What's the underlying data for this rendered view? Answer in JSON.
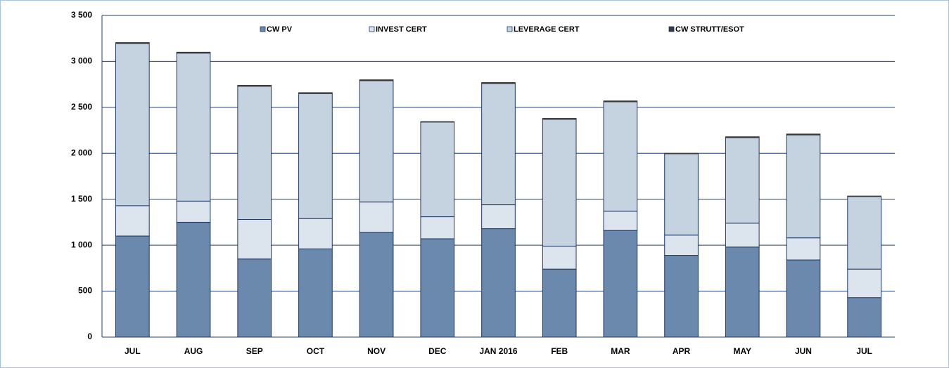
{
  "chart_data": {
    "type": "stacked_bar",
    "categories": [
      "JUL",
      "AUG",
      "SEP",
      "OCT",
      "NOV",
      "DEC",
      "JAN 2016",
      "FEB",
      "MAR",
      "APR",
      "MAY",
      "JUN",
      "JUL"
    ],
    "series": [
      {
        "name": "CW PV",
        "color": "#6b88ad",
        "values": [
          1100,
          1250,
          850,
          960,
          1140,
          1070,
          1180,
          740,
          1160,
          890,
          980,
          840,
          430
        ]
      },
      {
        "name": "INVEST CERT",
        "color": "#dce4ed",
        "values": [
          330,
          230,
          430,
          330,
          330,
          240,
          260,
          250,
          210,
          220,
          260,
          240,
          310
        ]
      },
      {
        "name": "LEVERAGE CERT",
        "color": "#c5d2e0",
        "values": [
          1765,
          1610,
          1450,
          1360,
          1320,
          1030,
          1320,
          1380,
          1190,
          885,
          930,
          1120,
          790
        ]
      },
      {
        "name": "CW STRUTT/ESOT",
        "color": "#3a3a3a",
        "values": [
          10,
          10,
          10,
          10,
          10,
          5,
          10,
          10,
          10,
          5,
          10,
          10,
          5
        ]
      }
    ],
    "ylim": [
      0,
      3500
    ],
    "yticks": [
      0,
      500,
      {
        "value": 1000,
        "label": "1 000"
      },
      {
        "value": 1500,
        "label": "1 500"
      },
      {
        "value": 2000,
        "label": "2 000"
      },
      {
        "value": 2500,
        "label": "2 500"
      },
      {
        "value": 3000,
        "label": "3 000"
      },
      {
        "value": 3500,
        "label": "3 500"
      }
    ],
    "grid": true,
    "legend": "top"
  }
}
